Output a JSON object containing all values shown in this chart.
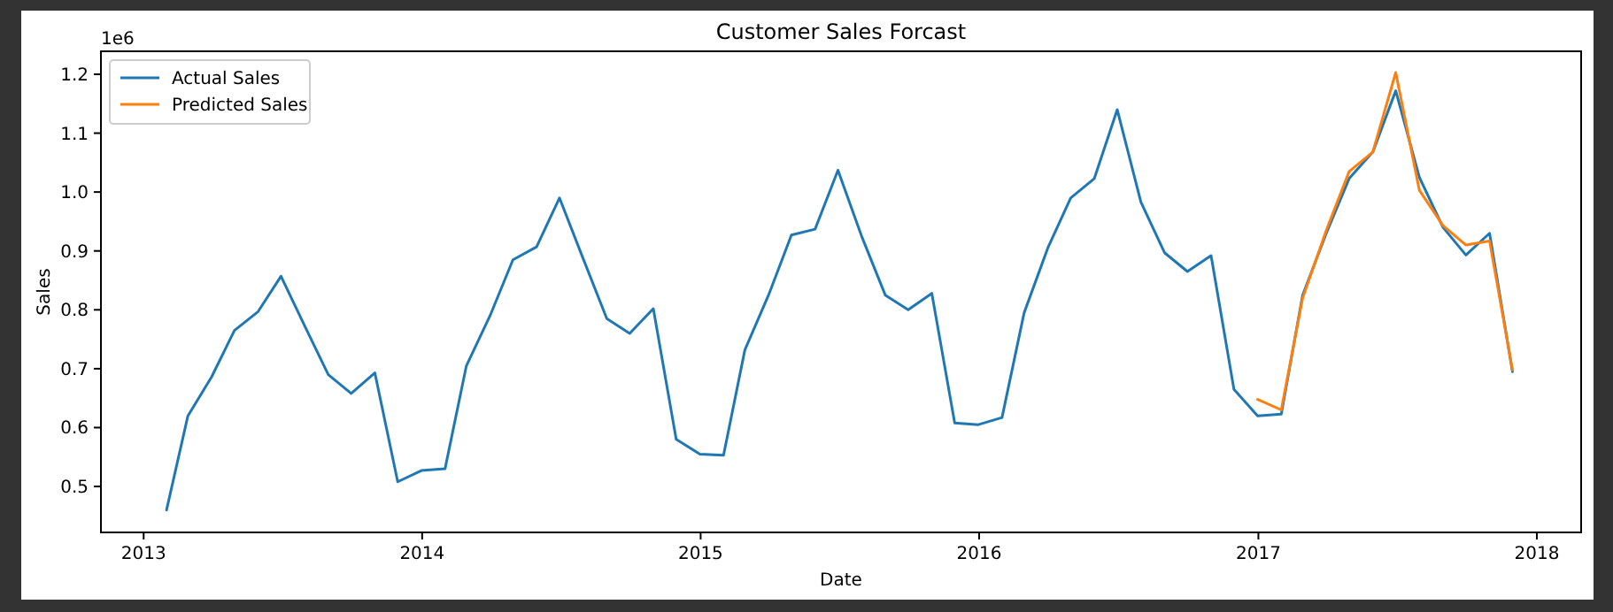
{
  "chart_data": {
    "type": "line",
    "title": "Customer Sales Forcast",
    "xlabel": "Date",
    "ylabel": "Sales",
    "annotations": [
      "1e6"
    ],
    "xlim": [
      "2012-11-06",
      "2018-02-28"
    ],
    "xticks": [
      {
        "value": "2013-01-01",
        "label": "2013"
      },
      {
        "value": "2014-01-01",
        "label": "2014"
      },
      {
        "value": "2015-01-01",
        "label": "2015"
      },
      {
        "value": "2016-01-01",
        "label": "2016"
      },
      {
        "value": "2017-01-01",
        "label": "2017"
      },
      {
        "value": "2018-01-01",
        "label": "2018"
      }
    ],
    "ylim": [
      0.422,
      1.239
    ],
    "yticks": [
      {
        "value": 0.5,
        "label": "0.5"
      },
      {
        "value": 0.6,
        "label": "0.6"
      },
      {
        "value": 0.7,
        "label": "0.7"
      },
      {
        "value": 0.8,
        "label": "0.8"
      },
      {
        "value": 0.9,
        "label": "0.9"
      },
      {
        "value": 1.0,
        "label": "1.0"
      },
      {
        "value": 1.1,
        "label": "1.1"
      },
      {
        "value": 1.2,
        "label": "1.2"
      }
    ],
    "grid": false,
    "legend": "top left",
    "line_style": "solid",
    "series": [
      {
        "name": "Actual Sales",
        "color": "#1f77b4",
        "x": [
          "2013-01-31",
          "2013-02-28",
          "2013-03-31",
          "2013-04-30",
          "2013-05-31",
          "2013-06-30",
          "2013-07-31",
          "2013-08-31",
          "2013-09-30",
          "2013-10-31",
          "2013-11-30",
          "2013-12-31",
          "2014-01-31",
          "2014-02-28",
          "2014-03-31",
          "2014-04-30",
          "2014-05-31",
          "2014-06-30",
          "2014-07-31",
          "2014-08-31",
          "2014-09-30",
          "2014-10-31",
          "2014-11-30",
          "2014-12-31",
          "2015-01-31",
          "2015-02-28",
          "2015-03-31",
          "2015-04-30",
          "2015-05-31",
          "2015-06-30",
          "2015-07-31",
          "2015-08-31",
          "2015-09-30",
          "2015-10-31",
          "2015-11-30",
          "2015-12-31",
          "2016-01-31",
          "2016-02-29",
          "2016-03-31",
          "2016-04-30",
          "2016-05-31",
          "2016-06-30",
          "2016-07-31",
          "2016-08-31",
          "2016-09-30",
          "2016-10-31",
          "2016-11-30",
          "2016-12-31",
          "2017-01-31",
          "2017-02-28",
          "2017-03-31",
          "2017-04-30",
          "2017-05-31",
          "2017-06-30",
          "2017-07-31",
          "2017-08-31",
          "2017-09-30",
          "2017-10-31",
          "2017-11-30"
        ],
        "values": [
          0.46,
          0.62,
          0.686,
          0.765,
          0.797,
          0.857,
          0.773,
          0.69,
          0.658,
          0.693,
          0.508,
          0.527,
          0.53,
          0.705,
          0.79,
          0.885,
          0.907,
          0.99,
          0.887,
          0.785,
          0.76,
          0.802,
          0.58,
          0.555,
          0.553,
          0.732,
          0.825,
          0.927,
          0.937,
          1.037,
          0.925,
          0.825,
          0.8,
          0.828,
          0.608,
          0.605,
          0.617,
          0.795,
          0.905,
          0.99,
          1.023,
          1.14,
          0.983,
          0.897,
          0.865,
          0.892,
          0.665,
          0.62,
          0.623,
          0.825,
          0.93,
          1.023,
          1.068,
          1.172,
          1.025,
          0.94,
          0.893,
          0.93,
          0.695
        ]
      },
      {
        "name": "Predicted Sales",
        "color": "#ff7f0e",
        "x": [
          "2016-12-31",
          "2017-01-31",
          "2017-02-28",
          "2017-03-31",
          "2017-04-30",
          "2017-05-31",
          "2017-06-30",
          "2017-07-31",
          "2017-08-31",
          "2017-09-30",
          "2017-10-31",
          "2017-11-30"
        ],
        "values": [
          0.648,
          0.63,
          0.82,
          0.935,
          1.035,
          1.068,
          1.203,
          1.003,
          0.943,
          0.91,
          0.917,
          0.698
        ]
      }
    ]
  }
}
